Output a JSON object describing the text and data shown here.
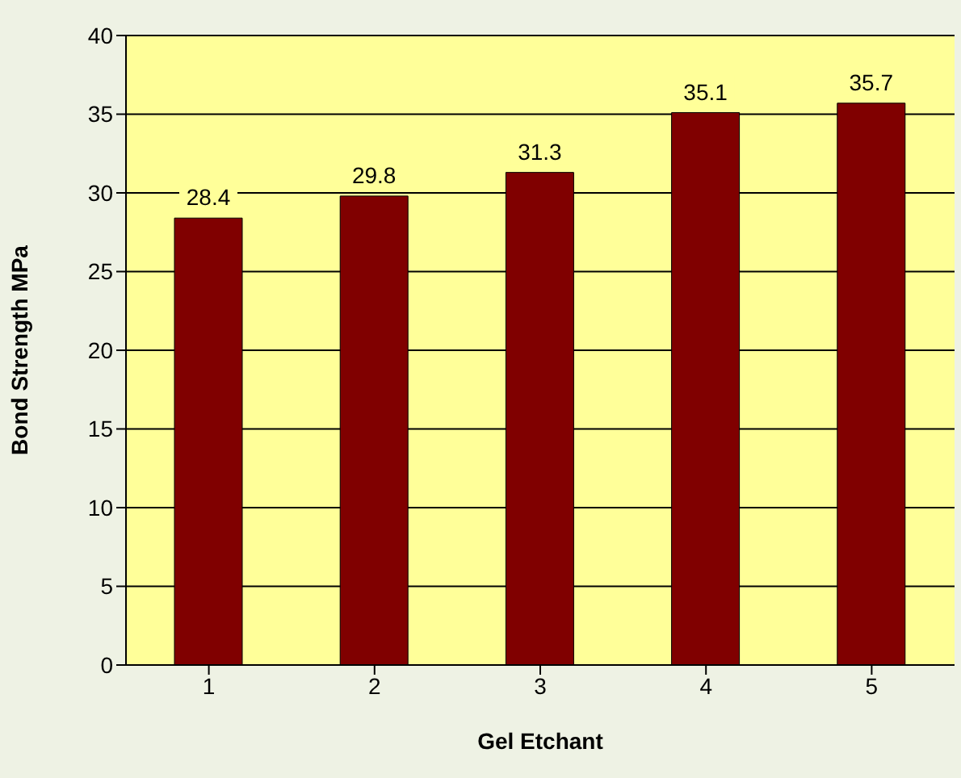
{
  "chart_data": {
    "type": "bar",
    "xlabel": "Gel Etchant",
    "ylabel": "Bond Strength MPa",
    "categories": [
      "1",
      "2",
      "3",
      "4",
      "5"
    ],
    "values": [
      28.4,
      29.8,
      31.3,
      35.1,
      35.7
    ],
    "color": "#800000",
    "ylim": [
      0,
      40
    ],
    "yticks": [
      0,
      5,
      10,
      15,
      20,
      25,
      30,
      35,
      40
    ],
    "grid": "y",
    "data_labels": true
  }
}
